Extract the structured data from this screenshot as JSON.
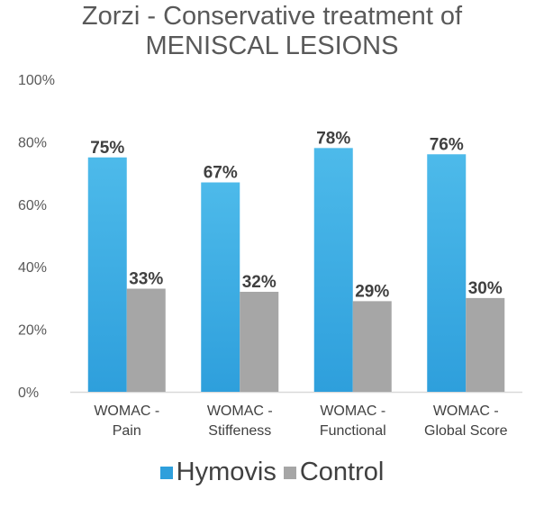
{
  "chart_data": {
    "type": "bar",
    "title": "Zorzi - Conservative treatment of",
    "subtitle": "MENISCAL LESIONS",
    "categories": [
      [
        "WOMAC -",
        "Pain"
      ],
      [
        "WOMAC -",
        "Stiffeness"
      ],
      [
        "WOMAC -",
        "Functional"
      ],
      [
        "WOMAC -",
        "Global Score"
      ]
    ],
    "series": [
      {
        "name": "Hymovis",
        "values": [
          75,
          67,
          78,
          76
        ],
        "labels": [
          "75%",
          "67%",
          "78%",
          "76%"
        ],
        "color": "#2E9FDC",
        "color_light": "#4DBAEA"
      },
      {
        "name": "Control",
        "values": [
          33,
          32,
          29,
          30
        ],
        "labels": [
          "33%",
          "32%",
          "29%",
          "30%"
        ],
        "color": "#A6A6A6"
      }
    ],
    "ylim": [
      0,
      100
    ],
    "yticks": [
      0,
      20,
      40,
      60,
      80,
      100
    ],
    "ytick_labels": [
      "0%",
      "20%",
      "40%",
      "60%",
      "80%",
      "100%"
    ],
    "xlabel": "",
    "ylabel": "",
    "grid": false,
    "legend": "bottom"
  }
}
